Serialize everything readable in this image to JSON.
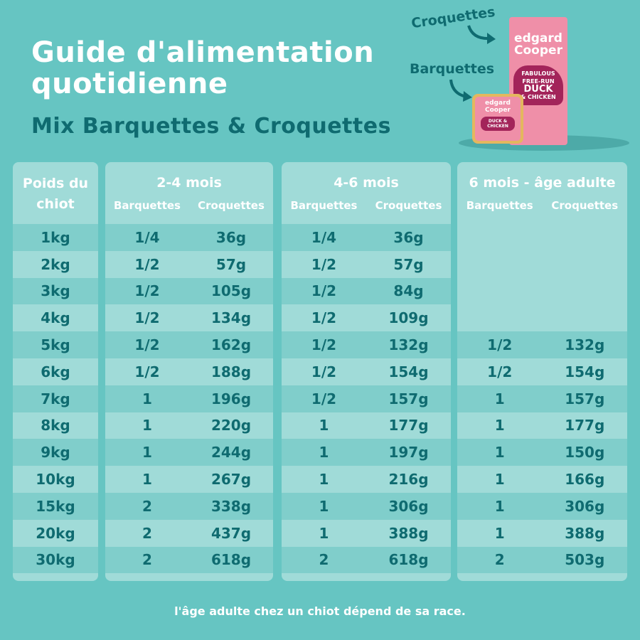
{
  "header": {
    "title_line1": "Guide d'alimentation",
    "title_line2": "quotidienne",
    "subtitle": "Mix Barquettes & Croquettes"
  },
  "product": {
    "label_croquettes": "Croquettes",
    "label_barquettes": "Barquettes",
    "brand_line1": "edgard",
    "brand_line2": "Cooper",
    "bag_text1": "FABULOUS",
    "bag_text2": "FREE-RUN",
    "bag_text3": "DUCK",
    "bag_text4": "& CHICKEN",
    "tray_text": "DUCK & CHICKEN",
    "colors": {
      "bag": "#ef8fa8",
      "duck": "#a3245a",
      "tray": "#e4b75e"
    }
  },
  "table": {
    "weight_header": "Poids du chiot",
    "weights": [
      "1kg",
      "2kg",
      "3kg",
      "4kg",
      "5kg",
      "6kg",
      "7kg",
      "8kg",
      "9kg",
      "10kg",
      "15kg",
      "20kg",
      "30kg"
    ],
    "sub_headers": {
      "barquettes": "Barquettes",
      "croquettes": "Croquettes"
    },
    "groups": [
      {
        "title": "2-4 mois",
        "barquettes": [
          "1/4",
          "1/2",
          "1/2",
          "1/2",
          "1/2",
          "1/2",
          "1",
          "1",
          "1",
          "1",
          "2",
          "2",
          "2"
        ],
        "croquettes": [
          "36g",
          "57g",
          "105g",
          "134g",
          "162g",
          "188g",
          "196g",
          "220g",
          "244g",
          "267g",
          "338g",
          "437g",
          "618g"
        ]
      },
      {
        "title": "4-6 mois",
        "barquettes": [
          "1/4",
          "1/2",
          "1/2",
          "1/2",
          "1/2",
          "1/2",
          "1/2",
          "1",
          "1",
          "1",
          "1",
          "1",
          "2"
        ],
        "croquettes": [
          "36g",
          "57g",
          "84g",
          "109g",
          "132g",
          "154g",
          "157g",
          "177g",
          "197g",
          "216g",
          "306g",
          "388g",
          "618g"
        ]
      },
      {
        "title": "6 mois - âge adulte",
        "barquettes": [
          "",
          "",
          "",
          "",
          "1/2",
          "1/2",
          "1",
          "1",
          "1",
          "1",
          "1",
          "1",
          "2"
        ],
        "croquettes": [
          "",
          "",
          "",
          "",
          "132g",
          "154g",
          "157g",
          "177g",
          "150g",
          "166g",
          "306g",
          "388g",
          "503g"
        ]
      }
    ]
  },
  "footer": "l'âge adulte chez un chiot dépend de sa race.",
  "colors": {
    "background": "#66c5c2",
    "panel": "#a0dbd8",
    "row_dark": "#80cecb",
    "text": "#0f6b70"
  }
}
